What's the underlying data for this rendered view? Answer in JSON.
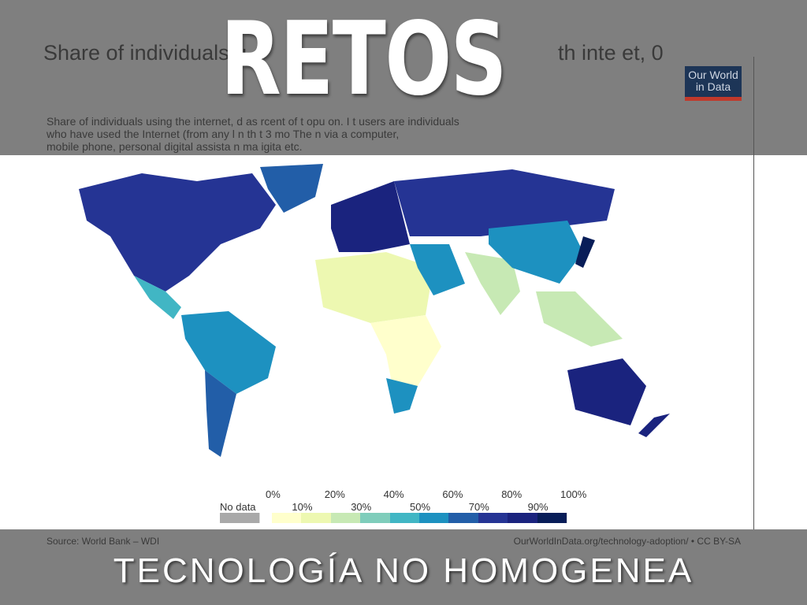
{
  "slide": {
    "heading": "RETOS",
    "subheading": "TECNOLOGÍA NO HOMOGENEA"
  },
  "chart": {
    "title_fragments": [
      "Share of individuals u",
      "th",
      "inte",
      "et,",
      "0"
    ],
    "subtitle_lines": [
      [
        "Share of individuals using the internet,",
        "d as",
        "rcent",
        "of t",
        "opu",
        "on. I",
        "t users are individuals"
      ],
      [
        "who have used the Internet (from any l",
        "n th",
        "t 3 mo",
        "The",
        "n",
        "via a computer,"
      ],
      [
        "mobile phone, personal digital assista",
        "n",
        "ma",
        "igita",
        "etc."
      ]
    ],
    "logo": "Our World in Data",
    "source": "Source: World Bank – WDI",
    "url": "OurWorldInData.org/technology-adoption/ • CC BY-SA"
  },
  "legend": {
    "no_data_label": "No data",
    "no_data_color": "#a9a9a9",
    "top_labels": [
      "0%",
      "20%",
      "40%",
      "60%",
      "80%",
      "100%"
    ],
    "bottom_labels": [
      "10%",
      "30%",
      "50%",
      "70%",
      "90%"
    ],
    "colors": [
      "#ffffcc",
      "#edf8b1",
      "#c7e9b4",
      "#7fcdbb",
      "#41b6c4",
      "#1d91c0",
      "#225ea8",
      "#253494",
      "#1a237e",
      "#081d58"
    ]
  }
}
